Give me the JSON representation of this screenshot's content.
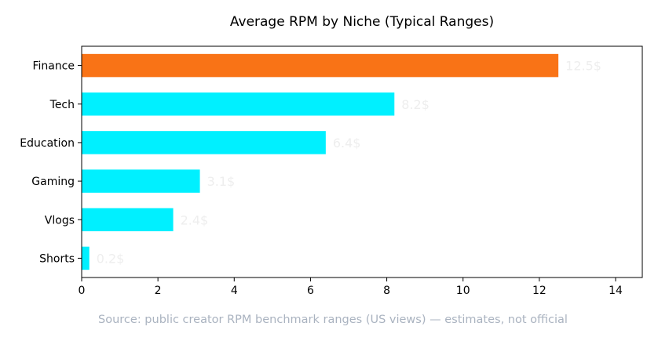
{
  "chart_data": {
    "type": "bar",
    "orientation": "horizontal",
    "title": "Average RPM by Niche (Typical Ranges)",
    "categories": [
      "Finance",
      "Tech",
      "Education",
      "Gaming",
      "Vlogs",
      "Shorts"
    ],
    "values": [
      12.5,
      8.2,
      6.4,
      3.1,
      2.4,
      0.2
    ],
    "value_labels": [
      "12.5$",
      "8.2$",
      "6.4$",
      "3.1$",
      "2.4$",
      "0.2$"
    ],
    "x_ticks": [
      "0",
      "2",
      "4",
      "6",
      "8",
      "10",
      "12",
      "14"
    ],
    "xlim": [
      0,
      14.7
    ],
    "xlabel": "",
    "ylabel": "",
    "grid": false,
    "highlight_color": "#f97316",
    "bar_color": "#00f0ff",
    "highlight_index": 0
  },
  "footer": {
    "source": "Source: public creator RPM benchmark ranges (US views) — estimates, not official"
  }
}
